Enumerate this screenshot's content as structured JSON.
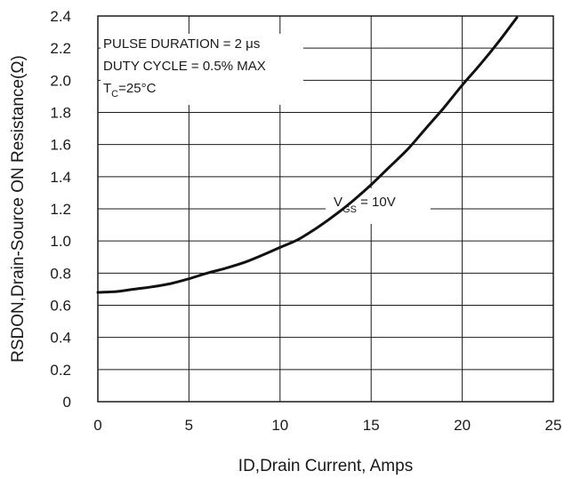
{
  "chart_data": {
    "type": "line",
    "xlabel": "ID,Drain Current, Amps",
    "ylabel": "RSDON,Drain-Source ON Resistance(Ω)",
    "xlim": [
      0,
      25
    ],
    "ylim": [
      0,
      2.4
    ],
    "x_ticks": [
      "0",
      "5",
      "10",
      "15",
      "20",
      "25"
    ],
    "y_ticks": [
      "0",
      "0.2",
      "0.4",
      "0.6",
      "0.8",
      "1.0",
      "1.2",
      "1.4",
      "1.6",
      "1.8",
      "2.0",
      "2.2",
      "2.4"
    ],
    "grid": true,
    "annotations": {
      "pulse_duration": "PULSE DURATION = 2 μs",
      "duty_cycle": "DUTY CYCLE = 0.5% MAX",
      "tc_main": "T",
      "tc_sub": "C",
      "tc_value": "=25°C",
      "vgs_main": "V",
      "vgs_sub": "GS",
      "vgs_value": " = 10V"
    },
    "series": [
      {
        "x": [
          0,
          1,
          2,
          3,
          4,
          5,
          6,
          7,
          8,
          9,
          10,
          11,
          12,
          13,
          14,
          15,
          16,
          17,
          18,
          19,
          20,
          21,
          22,
          23
        ],
        "y": [
          0.68,
          0.685,
          0.7,
          0.715,
          0.735,
          0.765,
          0.8,
          0.83,
          0.865,
          0.91,
          0.96,
          1.01,
          1.08,
          1.16,
          1.25,
          1.35,
          1.46,
          1.57,
          1.7,
          1.83,
          1.97,
          2.1,
          2.24,
          2.39
        ]
      }
    ]
  }
}
